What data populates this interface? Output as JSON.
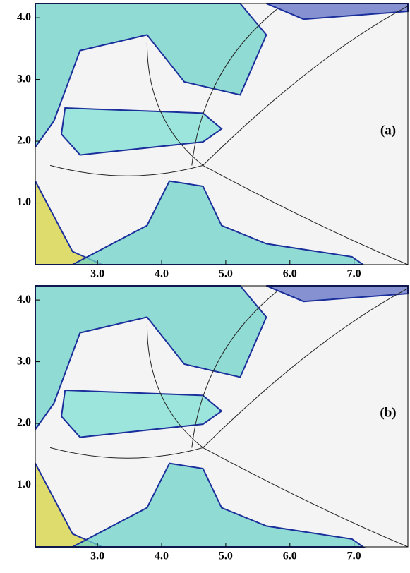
{
  "chart_data": [
    {
      "type": "contour",
      "annotation": "(a)",
      "xlim": [
        2.03,
        7.84
      ],
      "ylim": [
        0.0,
        4.23
      ],
      "xticks": [
        {
          "value": 3,
          "label": "3.0"
        },
        {
          "value": 4,
          "label": "4.0"
        },
        {
          "value": 5,
          "label": "5.0"
        },
        {
          "value": 6,
          "label": "6.0"
        },
        {
          "value": 7,
          "label": "7.0"
        }
      ],
      "yticks": [
        {
          "value": 1,
          "label": "1.0"
        },
        {
          "value": 2,
          "label": "2.0"
        },
        {
          "value": 3,
          "label": "3.0"
        },
        {
          "value": 4,
          "label": "4.0"
        }
      ]
    },
    {
      "type": "contour",
      "annotation": "(b)",
      "xlim": [
        2.03,
        7.84
      ],
      "ylim": [
        0.0,
        4.23
      ],
      "xticks": [
        {
          "value": 3,
          "label": "3.0"
        },
        {
          "value": 4,
          "label": "4.0"
        },
        {
          "value": 5,
          "label": "5.0"
        },
        {
          "value": 6,
          "label": "6.0"
        },
        {
          "value": 7,
          "label": "7.0"
        }
      ],
      "yticks": [
        {
          "value": 1,
          "label": "1.0"
        },
        {
          "value": 2,
          "label": "2.0"
        },
        {
          "value": 3,
          "label": "3.0"
        },
        {
          "value": 4,
          "label": "4.0"
        }
      ]
    }
  ]
}
